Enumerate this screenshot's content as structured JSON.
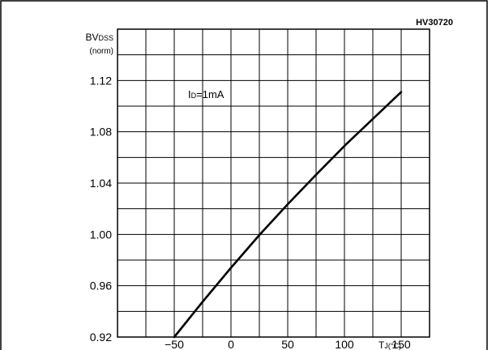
{
  "chart_data": {
    "type": "line",
    "figure_code": "HV30720",
    "ylabel": {
      "main": "BV",
      "sub": "DSS",
      "second_line": "(norm)"
    },
    "xlabel": {
      "main": "T",
      "sub": "J",
      "unit": "(°C)"
    },
    "annotation": {
      "main": "I",
      "sub": "D",
      "rest": "=1mA"
    },
    "xlim": [
      -100,
      175
    ],
    "ylim": [
      0.92,
      1.16
    ],
    "x_ticks": [
      "-50",
      "0",
      "50",
      "100",
      "150"
    ],
    "x_tick_values": [
      -50,
      0,
      50,
      100,
      150
    ],
    "y_ticks": [
      "0.92",
      "0.96",
      "1.00",
      "1.04",
      "1.08",
      "1.12"
    ],
    "y_tick_values": [
      0.92,
      0.96,
      1.0,
      1.04,
      1.08,
      1.12
    ],
    "x_grid_step": 25,
    "y_grid_step": 0.02,
    "grid": true,
    "series": [
      {
        "x": [
          -50,
          -25,
          0,
          25,
          50,
          75,
          100,
          125,
          150
        ],
        "values": [
          0.92,
          0.9475,
          0.974,
          0.9995,
          1.0235,
          1.0465,
          1.069,
          1.09,
          1.111
        ]
      }
    ]
  }
}
